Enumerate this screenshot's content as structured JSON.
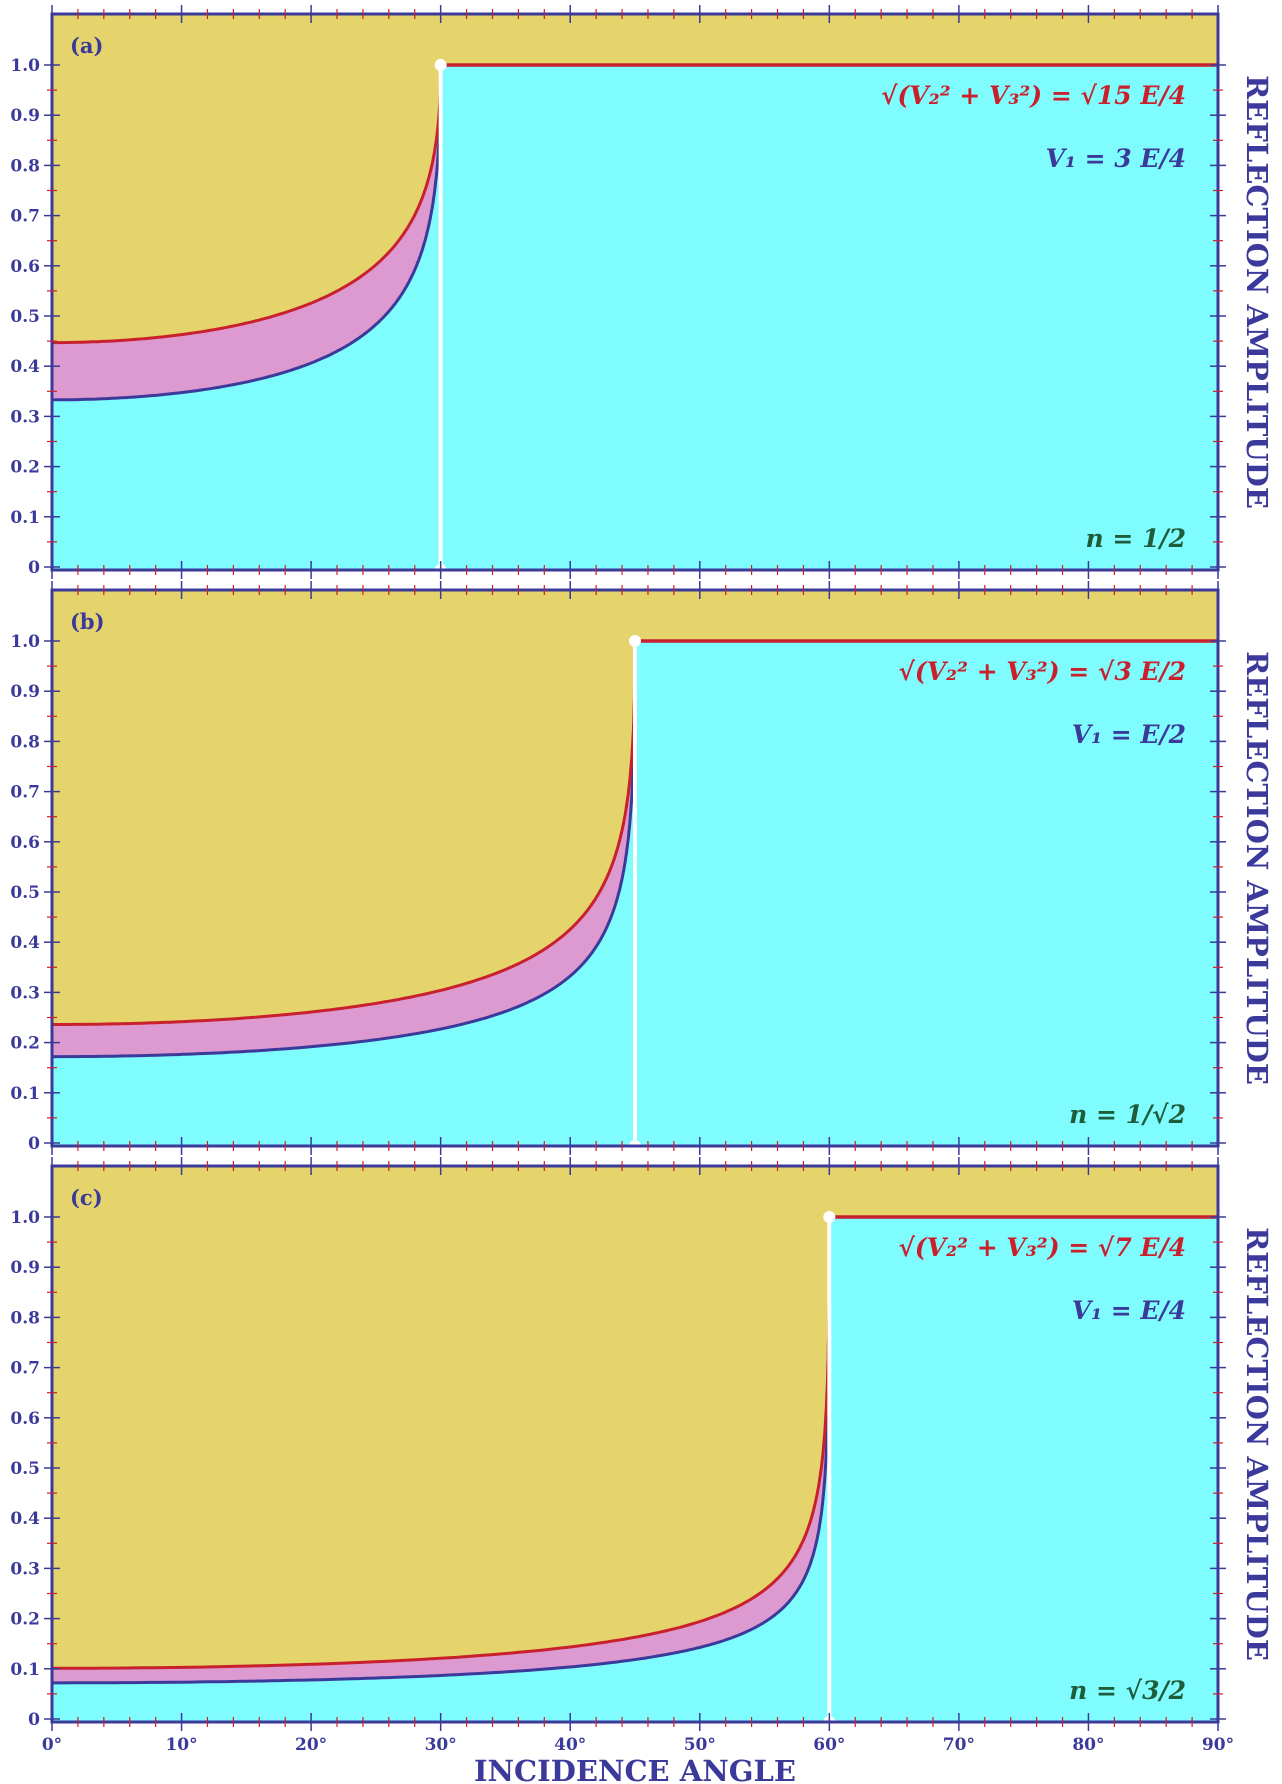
{
  "chart_data": [
    {
      "type": "area",
      "panel_label": "(a)",
      "formula_amplitude": "√(V₂² + V₃²) = √15 E/4",
      "formula_v1": "V₁ = 3 E/4",
      "formula_n": "n = 1/2",
      "critical_angle": 30,
      "series": [
        {
          "name": "√(V₂² + V₃²) = √15 E/4",
          "color": "#c8202c",
          "value_at_0": 0.447
        },
        {
          "name": "V₁ = 3 E/4",
          "color": "#3b3a9a",
          "value_at_0": 0.333
        }
      ],
      "total_reflection_value": 1.0,
      "xlim": [
        0,
        90
      ],
      "ylim": [
        0,
        1.0
      ],
      "y_ticks": [
        "0",
        "0.1",
        "0.2",
        "0.3",
        "0.4",
        "0.5",
        "0.6",
        "0.7",
        "0.8",
        "0.9",
        "1.0"
      ],
      "ylabel": "REFLECTION AMPLITUDE"
    },
    {
      "type": "area",
      "panel_label": "(b)",
      "formula_amplitude": "√(V₂² + V₃²) = √3 E/2",
      "formula_v1": "V₁ = E/2",
      "formula_n": "n = 1/√2",
      "critical_angle": 45,
      "series": [
        {
          "name": "√(V₂² + V₃²) = √3 E/2",
          "color": "#c8202c",
          "value_at_0": 0.236
        },
        {
          "name": "V₁ = E/2",
          "color": "#3b3a9a",
          "value_at_0": 0.172
        }
      ],
      "total_reflection_value": 1.0,
      "xlim": [
        0,
        90
      ],
      "ylim": [
        0,
        1.0
      ],
      "y_ticks": [
        "0",
        "0.1",
        "0.2",
        "0.3",
        "0.4",
        "0.5",
        "0.6",
        "0.7",
        "0.8",
        "0.9",
        "1.0"
      ],
      "ylabel": "REFLECTION AMPLITUDE"
    },
    {
      "type": "area",
      "panel_label": "(c)",
      "formula_amplitude": "√(V₂² + V₃²) = √7 E/4",
      "formula_v1": "V₁ = E/4",
      "formula_n": "n = √3/2",
      "critical_angle": 60,
      "series": [
        {
          "name": "√(V₂² + V₃²) = √7 E/4",
          "color": "#c8202c",
          "value_at_0": 0.101
        },
        {
          "name": "V₁ = E/4",
          "color": "#3b3a9a",
          "value_at_0": 0.072
        }
      ],
      "total_reflection_value": 1.0,
      "xlim": [
        0,
        90
      ],
      "ylim": [
        0,
        1.0
      ],
      "y_ticks": [
        "0",
        "0.1",
        "0.2",
        "0.3",
        "0.4",
        "0.5",
        "0.6",
        "0.7",
        "0.8",
        "0.9",
        "1.0"
      ],
      "x_ticks": [
        "0°",
        "10°",
        "20°",
        "30°",
        "40°",
        "50°",
        "60°",
        "70°",
        "80°",
        "90°"
      ],
      "xlabel": "INCIDENCE ANGLE",
      "ylabel": "REFLECTION AMPLITUDE"
    }
  ],
  "colors": {
    "background_region": "#e5d46c",
    "transmitted_region": "#7ffcfd",
    "band_region": "#dc9ad0",
    "frame": "#3b3a9a",
    "red_curve": "#c8202c",
    "blue_curve": "#3b3a9a",
    "critical_line": "#ffffff"
  }
}
